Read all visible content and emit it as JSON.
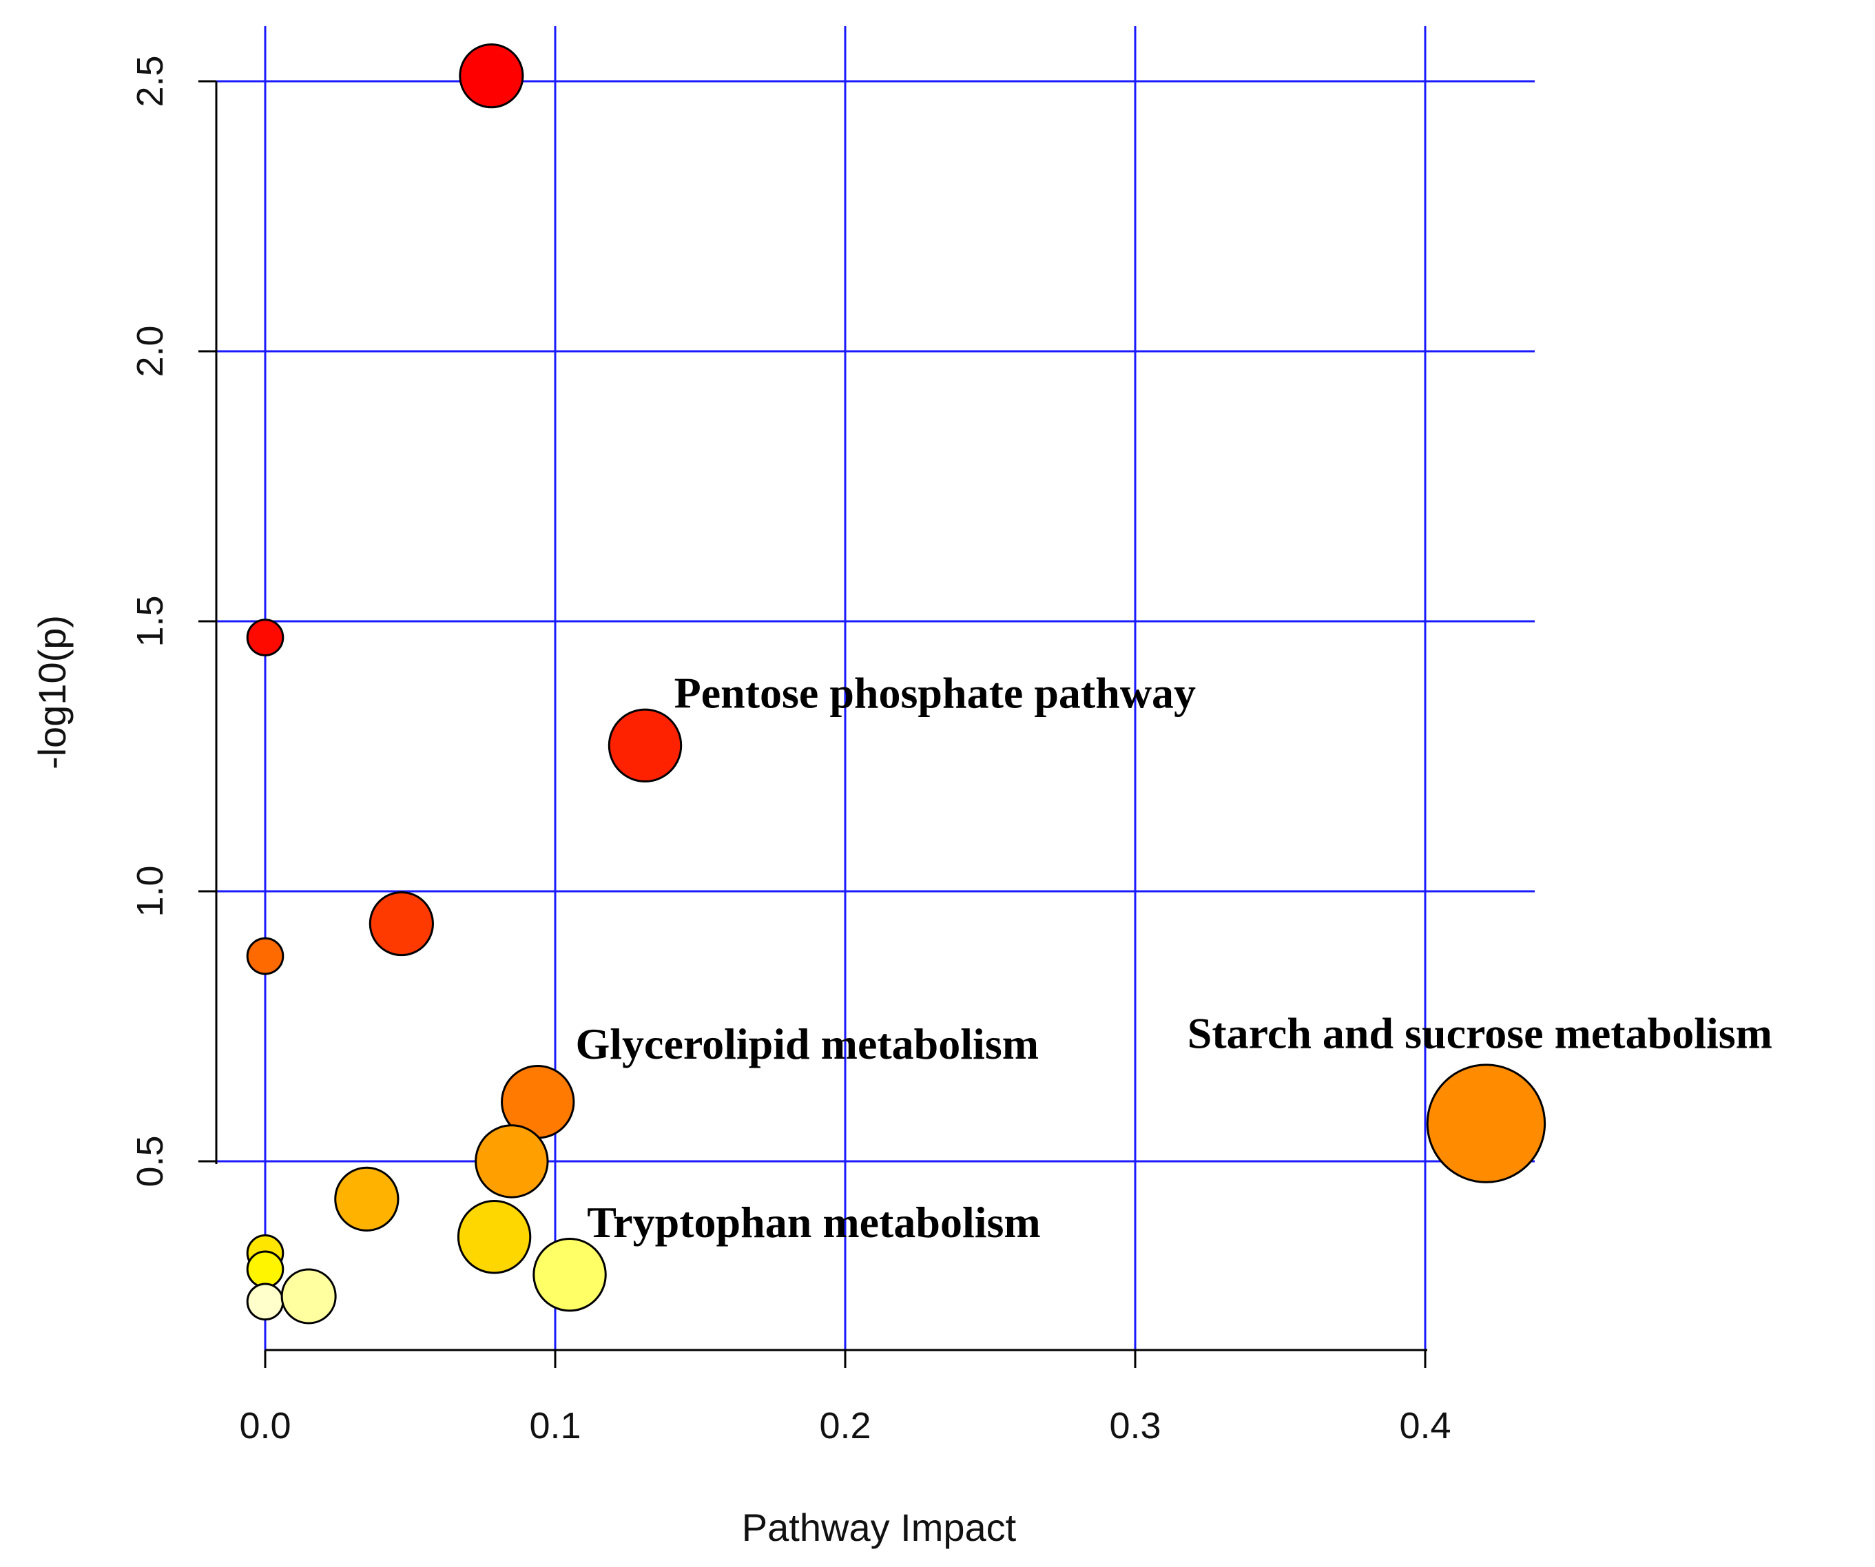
{
  "chart_data": {
    "type": "scatter",
    "title": "",
    "xlabel": "Pathway Impact",
    "ylabel": "-log10(p)",
    "xlim": [
      -0.017,
      0.42
    ],
    "ylim": [
      0.2,
      2.5
    ],
    "x_ticks": [
      0.0,
      0.1,
      0.2,
      0.3,
      0.4
    ],
    "x_tick_labels": [
      "0.0",
      "0.1",
      "0.2",
      "0.3",
      "0.4"
    ],
    "y_ticks": [
      0.5,
      1.0,
      1.5,
      2.0,
      2.5
    ],
    "y_tick_labels": [
      "0.5",
      "1.0",
      "1.5",
      "2.0",
      "2.5"
    ],
    "grid": true,
    "grid_color": "#1a1aff",
    "points": [
      {
        "x": 0.078,
        "y": 2.51,
        "size": 6,
        "color": "#ff0000"
      },
      {
        "x": 0.0,
        "y": 1.47,
        "size": 3,
        "color": "#ff0a00"
      },
      {
        "x": 0.131,
        "y": 1.27,
        "size": 7,
        "color": "#ff2200"
      },
      {
        "x": 0.047,
        "y": 0.94,
        "size": 6,
        "color": "#ff3a00"
      },
      {
        "x": 0.0,
        "y": 0.88,
        "size": 3,
        "color": "#ff6a00"
      },
      {
        "x": 0.094,
        "y": 0.61,
        "size": 7,
        "color": "#ff7a00"
      },
      {
        "x": 0.421,
        "y": 0.57,
        "size": 12,
        "color": "#ff8c00"
      },
      {
        "x": 0.085,
        "y": 0.5,
        "size": 7,
        "color": "#ffa000"
      },
      {
        "x": 0.035,
        "y": 0.43,
        "size": 6,
        "color": "#ffb300"
      },
      {
        "x": 0.079,
        "y": 0.36,
        "size": 7,
        "color": "#ffd700"
      },
      {
        "x": 0.0,
        "y": 0.33,
        "size": 3,
        "color": "#ffe600"
      },
      {
        "x": 0.0,
        "y": 0.3,
        "size": 3,
        "color": "#fff500"
      },
      {
        "x": 0.105,
        "y": 0.29,
        "size": 7,
        "color": "#ffff66"
      },
      {
        "x": 0.0,
        "y": 0.24,
        "size": 3,
        "color": "#ffffcc"
      },
      {
        "x": 0.015,
        "y": 0.25,
        "size": 5,
        "color": "#ffffa0"
      }
    ],
    "annotations": [
      {
        "text": "Pentose phosphate pathway",
        "x": 0.141,
        "y": 1.34
      },
      {
        "text": "Glycerolipid metabolism",
        "x": 0.107,
        "y": 0.69
      },
      {
        "text": "Starch and sucrose metabolism",
        "x": 0.318,
        "y": 0.71
      },
      {
        "text": "Tryptophan metabolism",
        "x": 0.111,
        "y": 0.36
      }
    ]
  }
}
